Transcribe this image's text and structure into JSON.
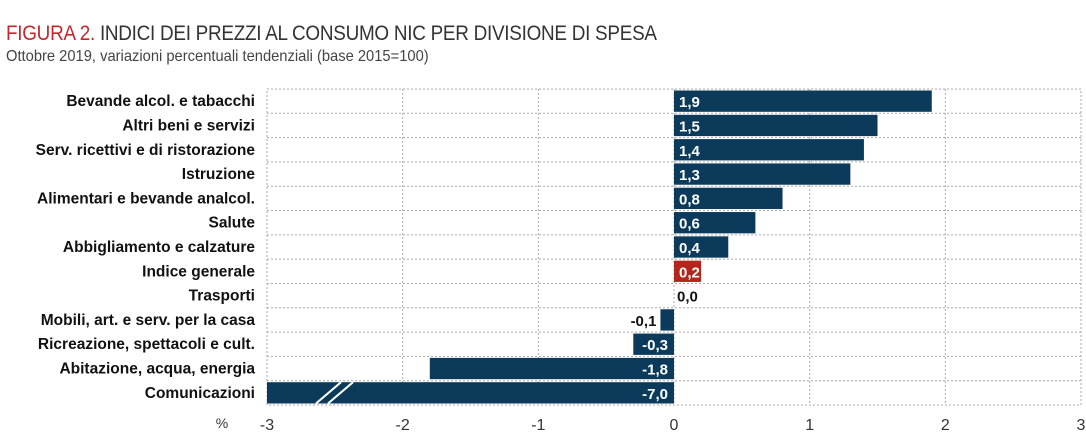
{
  "title_prefix": "FIGURA 2.",
  "title": "INDICI DEI PREZZI AL CONSUMO NIC PER DIVISIONE DI SPESA",
  "subtitle": "Ottobre 2019, variazioni percentuali tendenziali (base 2015=100)",
  "chart_data": {
    "type": "bar",
    "orientation": "horizontal",
    "categories": [
      "Bevande alcol. e tabacchi",
      "Altri beni e servizi",
      "Serv. ricettivi e di ristorazione",
      "Istruzione",
      "Alimentari e bevande analcol.",
      "Salute",
      "Abbigliamento e calzature",
      "Indice generale",
      "Trasporti",
      "Mobili, art. e serv. per la casa",
      "Ricreazione, spettacoli e cult.",
      "Abitazione, acqua, energia",
      "Comunicazioni"
    ],
    "values": [
      1.9,
      1.5,
      1.4,
      1.3,
      0.8,
      0.6,
      0.4,
      0.2,
      0.0,
      -0.1,
      -0.3,
      -1.8,
      -7.0
    ],
    "labels": [
      "1,9",
      "1,5",
      "1,4",
      "1,3",
      "0,8",
      "0,6",
      "0,4",
      "0,2",
      "0,0",
      "-0,1",
      "-0,3",
      "-1,8",
      "-7,0"
    ],
    "highlight": "Indice generale",
    "xlim": [
      -3,
      3
    ],
    "xticks": [
      "-3",
      "-2",
      "-1",
      "0",
      "1",
      "2",
      "3"
    ],
    "xlabel": "%",
    "axis_break": "Comunicazioni",
    "grid": true,
    "colors": {
      "bar": "#0b3a5b",
      "highlight": "#b3261e",
      "title_prefix": "#c0282d"
    }
  }
}
